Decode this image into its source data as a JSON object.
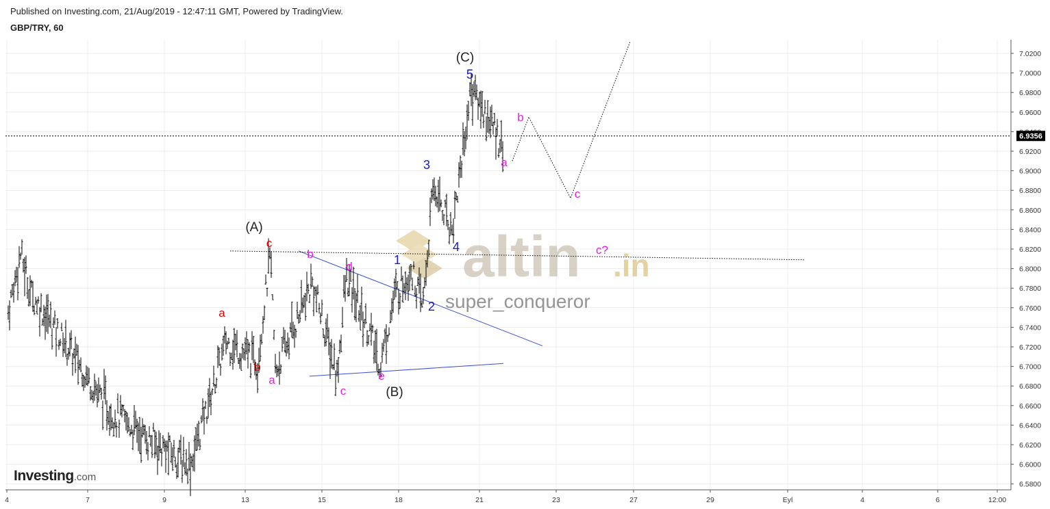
{
  "header": {
    "published": "Published on Investing.com, 21/Aug/2019 - 12:47:11 GMT, Powered by TradingView.",
    "symbol": "GBP/TRY, 60"
  },
  "brand": {
    "name": "Investing",
    "suffix": ".com"
  },
  "watermark": {
    "site": "altin",
    "tld": ".in",
    "author": "super_conqueror",
    "color": "#c8bfae"
  },
  "colors": {
    "candle": "#000000",
    "trendline": "#3b4fd8",
    "red": "#e00000",
    "magenta": "#e020e0",
    "blue": "#1a1ac8",
    "black": "#222222"
  },
  "chart_data": {
    "type": "ohlc",
    "symbol": "GBP/TRY",
    "interval": "60",
    "ylim": [
      6.575,
      7.03
    ],
    "yticks": [
      "7.0200",
      "7.0000",
      "6.9800",
      "6.9600",
      "6.9400",
      "6.9200",
      "6.9000",
      "6.8800",
      "6.8600",
      "6.8400",
      "6.8200",
      "6.8000",
      "6.7800",
      "6.7600",
      "6.7400",
      "6.7200",
      "6.7000",
      "6.6800",
      "6.6600",
      "6.6400",
      "6.6200",
      "6.6000",
      "6.5800"
    ],
    "xtick_labels": [
      "4",
      "7",
      "9",
      "13",
      "15",
      "18",
      "21",
      "23",
      "27",
      "29",
      "Eyl",
      "4",
      "6",
      "12:00"
    ],
    "last_price": "6.9356",
    "price_path": [
      {
        "x": "Aug 2",
        "y": 6.756
      },
      {
        "x": "Aug 5",
        "y": 6.815
      },
      {
        "x": "Aug 6",
        "y": 6.775
      },
      {
        "x": "Aug 7",
        "y": 6.7
      },
      {
        "x": "Aug 8",
        "y": 6.655
      },
      {
        "x": "Aug 9",
        "y": 6.625
      },
      {
        "x": "Aug 12",
        "y": 6.6
      },
      {
        "x": "Aug 13",
        "y": 6.725
      },
      {
        "x": "Aug 13",
        "y": 6.705
      },
      {
        "x": "Aug 14",
        "y": 6.815
      },
      {
        "x": "Aug 14",
        "y": 6.695
      },
      {
        "x": "Aug 15",
        "y": 6.785
      },
      {
        "x": "Aug 16",
        "y": 6.69
      },
      {
        "x": "Aug 16",
        "y": 6.79
      },
      {
        "x": "Aug 17",
        "y": 6.735
      },
      {
        "x": "Aug 18",
        "y": 6.7
      },
      {
        "x": "Aug 18",
        "y": 6.77
      },
      {
        "x": "Aug 19",
        "y": 6.8
      },
      {
        "x": "Aug 19",
        "y": 6.76
      },
      {
        "x": "Aug 20",
        "y": 6.885
      },
      {
        "x": "Aug 20",
        "y": 6.84
      },
      {
        "x": "Aug 21",
        "y": 6.985
      },
      {
        "x": "Aug 21",
        "y": 6.925
      }
    ],
    "projection": [
      {
        "x": "Aug 21",
        "y": 6.91
      },
      {
        "x": "Aug 22",
        "y": 6.955
      },
      {
        "x": "Aug 24",
        "y": 6.872
      },
      {
        "x": "Aug 27",
        "y": 7.032
      }
    ],
    "trendlines": [
      {
        "name": "triangle-upper",
        "style": "solid",
        "from": {
          "x": "Aug 14",
          "y": 6.818
        },
        "to": {
          "x": "Aug 22",
          "y": 6.721
        }
      },
      {
        "name": "triangle-lower",
        "style": "solid",
        "from": {
          "x": "Aug 14",
          "y": 6.69
        },
        "to": {
          "x": "Aug 21",
          "y": 6.703
        }
      },
      {
        "name": "dotted-support",
        "style": "dotted",
        "from": {
          "x": "Aug 13",
          "y": 6.818
        },
        "to": {
          "x": "Sep 3",
          "y": 6.809
        }
      },
      {
        "name": "last-price-line",
        "style": "dotted",
        "from": {
          "x": "Aug 2",
          "y": 6.9356
        },
        "to": {
          "x": "12:00",
          "y": 6.9356
        }
      }
    ],
    "wave_labels": [
      {
        "text": "(A)",
        "color": "black"
      },
      {
        "text": "(B)",
        "color": "black"
      },
      {
        "text": "(C)",
        "color": "black"
      },
      {
        "text": "a",
        "color": "red"
      },
      {
        "text": "b",
        "color": "red"
      },
      {
        "text": "c",
        "color": "red"
      },
      {
        "text": "a",
        "color": "magenta"
      },
      {
        "text": "b",
        "color": "magenta"
      },
      {
        "text": "c",
        "color": "magenta"
      },
      {
        "text": "d",
        "color": "magenta"
      },
      {
        "text": "e",
        "color": "magenta"
      },
      {
        "text": "1",
        "color": "blue"
      },
      {
        "text": "2",
        "color": "blue"
      },
      {
        "text": "3",
        "color": "blue"
      },
      {
        "text": "4",
        "color": "blue"
      },
      {
        "text": "5",
        "color": "blue"
      },
      {
        "text": "b",
        "color": "magenta"
      },
      {
        "text": "a",
        "color": "magenta"
      },
      {
        "text": "c",
        "color": "magenta"
      },
      {
        "text": "c?",
        "color": "magenta"
      }
    ],
    "grid": true
  }
}
